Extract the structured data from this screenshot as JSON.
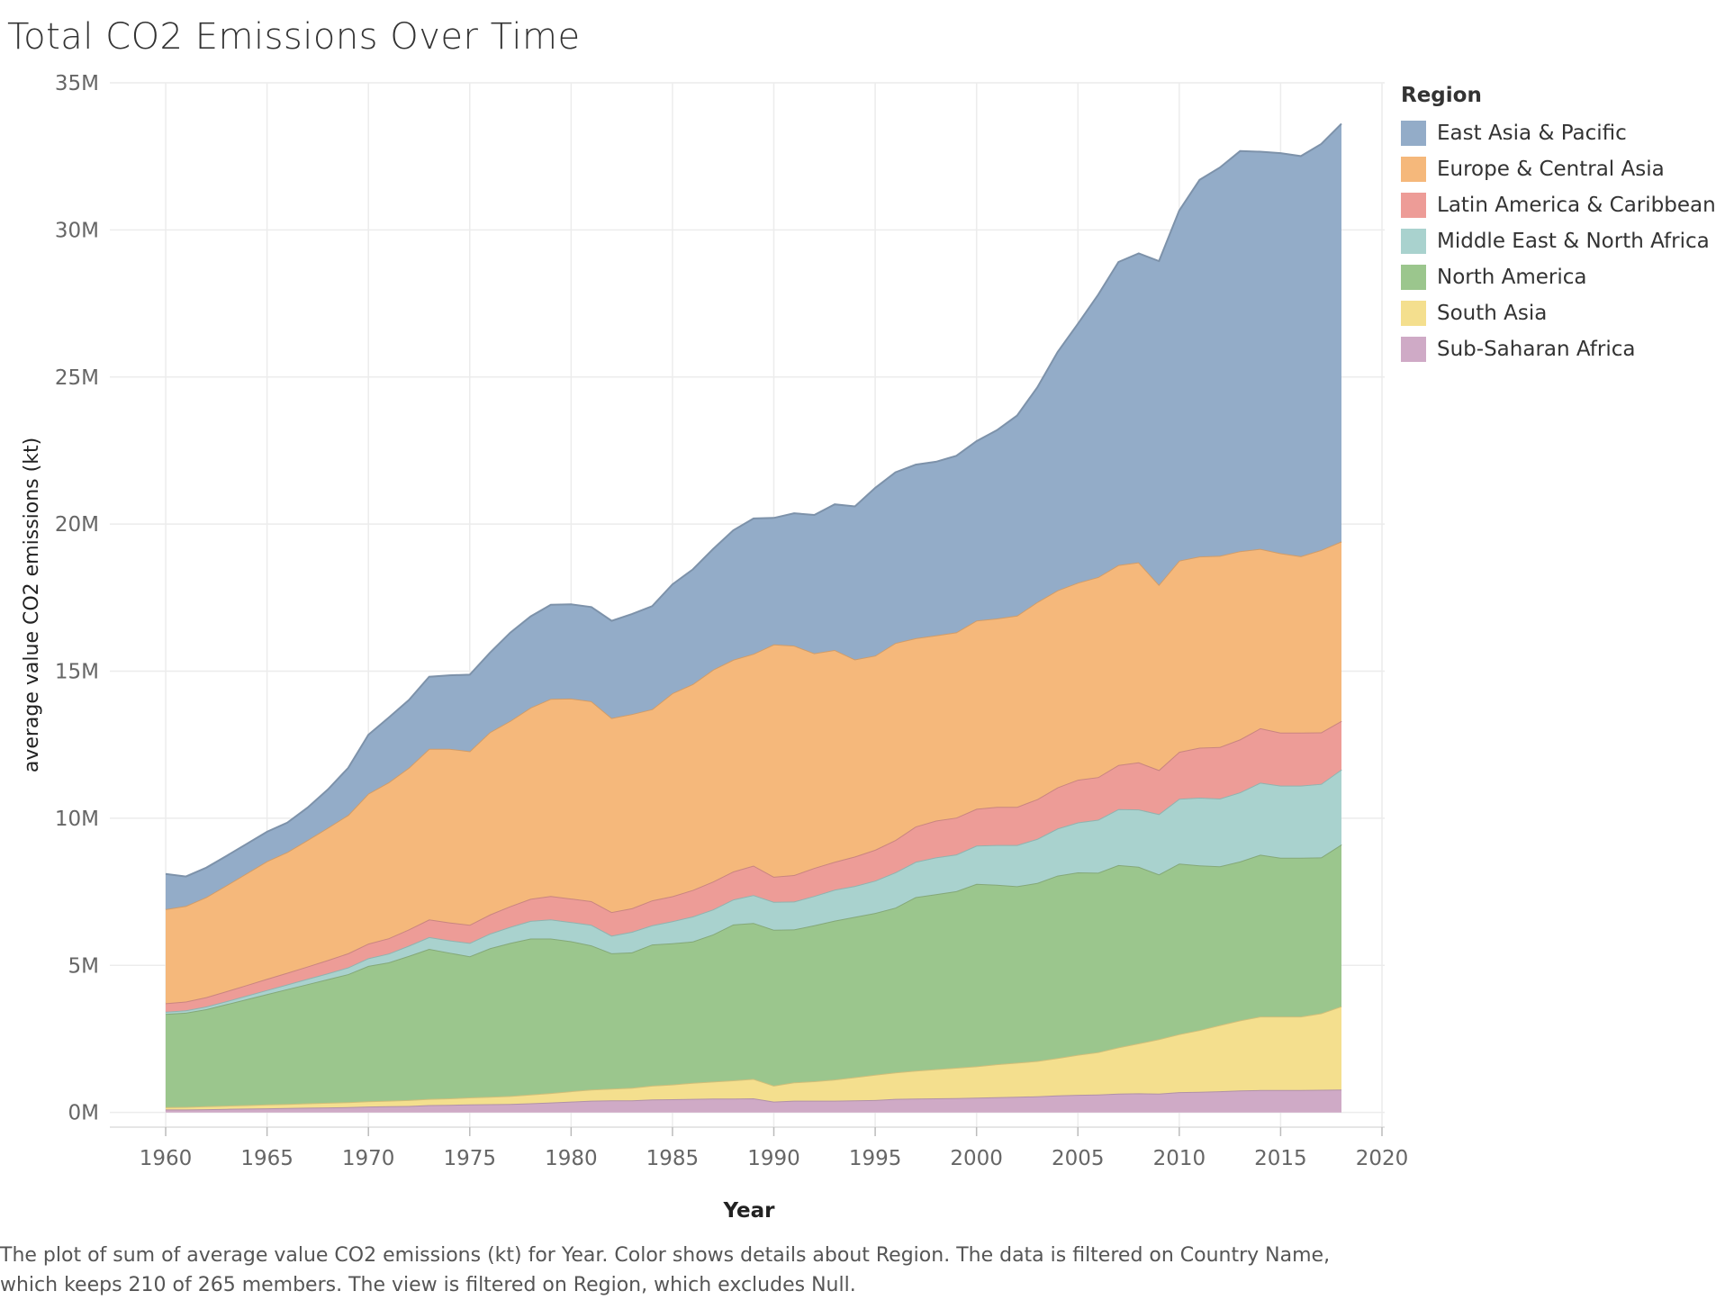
{
  "title": "Total CO2 Emissions Over Time",
  "caption": {
    "line1": "The plot of sum of average value CO2 emissions (kt) for Year.  Color shows details about Region. The data is filtered on Country Name,",
    "line2": "which keeps 210 of 265 members. The view is filtered on Region, which excludes Null."
  },
  "legend": {
    "title": "Region",
    "items": [
      {
        "label": "East Asia & Pacific",
        "color": "#93acc8"
      },
      {
        "label": "Europe & Central Asia",
        "color": "#f5b87b"
      },
      {
        "label": "Latin America & Caribbean",
        "color": "#ed9c97"
      },
      {
        "label": "Middle East & North Africa",
        "color": "#a9d2ce"
      },
      {
        "label": "North America",
        "color": "#9bc68d"
      },
      {
        "label": "South Asia",
        "color": "#f4df8e"
      },
      {
        "label": "Sub-Saharan Africa",
        "color": "#cfaac6"
      }
    ]
  },
  "chart_data": {
    "type": "area",
    "stacked": true,
    "xlabel": "Year",
    "ylabel": "average value CO2 emissions (kt)",
    "xlim": [
      1958,
      2020
    ],
    "ylim": [
      -500000,
      35000000
    ],
    "xticks": [
      1960,
      1965,
      1970,
      1975,
      1980,
      1985,
      1990,
      1995,
      2000,
      2005,
      2010,
      2015,
      2020
    ],
    "yticks": [
      0,
      5000000,
      10000000,
      15000000,
      20000000,
      25000000,
      30000000,
      35000000
    ],
    "ytick_labels": [
      "0M",
      "5M",
      "10M",
      "15M",
      "20M",
      "25M",
      "30M",
      "35M"
    ],
    "grid": true,
    "legend_position": "right",
    "x": [
      1960,
      1961,
      1962,
      1963,
      1964,
      1965,
      1966,
      1967,
      1968,
      1969,
      1970,
      1971,
      1972,
      1973,
      1974,
      1975,
      1976,
      1977,
      1978,
      1979,
      1980,
      1981,
      1982,
      1983,
      1984,
      1985,
      1986,
      1987,
      1988,
      1989,
      1990,
      1991,
      1992,
      1993,
      1994,
      1995,
      1996,
      1997,
      1998,
      1999,
      2000,
      2001,
      2002,
      2003,
      2004,
      2005,
      2006,
      2007,
      2008,
      2009,
      2010,
      2011,
      2012,
      2013,
      2014,
      2015,
      2016,
      2017,
      2018
    ],
    "series": [
      {
        "name": "Sub-Saharan Africa",
        "color": "#cfaac6",
        "values": [
          100000,
          100000,
          110000,
          120000,
          130000,
          140000,
          150000,
          160000,
          170000,
          180000,
          200000,
          210000,
          220000,
          250000,
          260000,
          270000,
          280000,
          290000,
          310000,
          340000,
          370000,
          400000,
          410000,
          410000,
          440000,
          450000,
          460000,
          470000,
          470000,
          480000,
          370000,
          400000,
          400000,
          400000,
          410000,
          420000,
          460000,
          470000,
          480000,
          490000,
          500000,
          520000,
          530000,
          550000,
          580000,
          600000,
          610000,
          640000,
          650000,
          640000,
          690000,
          700000,
          720000,
          750000,
          760000,
          760000,
          760000,
          770000,
          780000
        ]
      },
      {
        "name": "South Asia",
        "color": "#f4df8e",
        "values": [
          80000,
          90000,
          100000,
          110000,
          120000,
          130000,
          140000,
          150000,
          160000,
          170000,
          180000,
          190000,
          200000,
          210000,
          220000,
          240000,
          250000,
          270000,
          300000,
          320000,
          350000,
          380000,
          400000,
          430000,
          470000,
          500000,
          550000,
          580000,
          620000,
          660000,
          540000,
          620000,
          660000,
          720000,
          790000,
          860000,
          900000,
          950000,
          990000,
          1030000,
          1070000,
          1120000,
          1160000,
          1200000,
          1270000,
          1360000,
          1440000,
          1570000,
          1700000,
          1850000,
          1970000,
          2100000,
          2250000,
          2380000,
          2500000,
          2500000,
          2500000,
          2600000,
          2830000
        ]
      },
      {
        "name": "North America",
        "color": "#9bc68d",
        "values": [
          3170000,
          3200000,
          3300000,
          3450000,
          3600000,
          3750000,
          3900000,
          4050000,
          4200000,
          4350000,
          4600000,
          4700000,
          4900000,
          5100000,
          4950000,
          4800000,
          5050000,
          5200000,
          5300000,
          5250000,
          5100000,
          4900000,
          4600000,
          4600000,
          4800000,
          4800000,
          4800000,
          5000000,
          5300000,
          5300000,
          5300000,
          5200000,
          5300000,
          5400000,
          5450000,
          5500000,
          5600000,
          5900000,
          5950000,
          6000000,
          6200000,
          6100000,
          6000000,
          6050000,
          6200000,
          6200000,
          6100000,
          6200000,
          6000000,
          5600000,
          5800000,
          5600000,
          5400000,
          5400000,
          5500000,
          5400000,
          5400000,
          5300000,
          5500000
        ]
      },
      {
        "name": "Middle East & North Africa",
        "color": "#a9d2ce",
        "values": [
          70000,
          80000,
          90000,
          100000,
          120000,
          140000,
          160000,
          180000,
          200000,
          230000,
          260000,
          300000,
          350000,
          400000,
          420000,
          450000,
          500000,
          550000,
          600000,
          650000,
          650000,
          700000,
          600000,
          700000,
          650000,
          750000,
          850000,
          850000,
          850000,
          950000,
          950000,
          950000,
          1000000,
          1050000,
          1050000,
          1100000,
          1200000,
          1200000,
          1250000,
          1250000,
          1300000,
          1350000,
          1400000,
          1500000,
          1600000,
          1700000,
          1800000,
          1900000,
          1950000,
          2050000,
          2200000,
          2300000,
          2300000,
          2350000,
          2450000,
          2450000,
          2450000,
          2500000,
          2550000
        ]
      },
      {
        "name": "Latin America & Caribbean",
        "color": "#ed9c97",
        "values": [
          290000,
          300000,
          320000,
          340000,
          360000,
          380000,
          400000,
          420000,
          450000,
          480000,
          500000,
          520000,
          550000,
          600000,
          610000,
          620000,
          650000,
          700000,
          750000,
          800000,
          800000,
          800000,
          800000,
          800000,
          850000,
          850000,
          900000,
          950000,
          950000,
          1000000,
          850000,
          900000,
          950000,
          950000,
          1000000,
          1050000,
          1100000,
          1200000,
          1250000,
          1250000,
          1250000,
          1300000,
          1300000,
          1350000,
          1400000,
          1450000,
          1450000,
          1500000,
          1600000,
          1500000,
          1600000,
          1700000,
          1750000,
          1800000,
          1850000,
          1800000,
          1800000,
          1750000,
          1650000
        ]
      },
      {
        "name": "Europe & Central Asia",
        "color": "#f5b87b",
        "values": [
          3200000,
          3250000,
          3400000,
          3600000,
          3800000,
          4000000,
          4100000,
          4300000,
          4500000,
          4700000,
          5100000,
          5300000,
          5500000,
          5800000,
          5900000,
          5900000,
          6200000,
          6300000,
          6500000,
          6700000,
          6800000,
          6800000,
          6600000,
          6600000,
          6500000,
          6900000,
          7000000,
          7200000,
          7200000,
          7200000,
          7900000,
          7800000,
          7300000,
          7200000,
          6700000,
          6600000,
          6700000,
          6400000,
          6300000,
          6300000,
          6400000,
          6400000,
          6500000,
          6700000,
          6700000,
          6700000,
          6800000,
          6800000,
          6800000,
          6300000,
          6500000,
          6500000,
          6500000,
          6400000,
          6100000,
          6100000,
          6000000,
          6200000,
          6100000
        ]
      },
      {
        "name": "East Asia & Pacific",
        "color": "#93acc8",
        "values": [
          1200000,
          1000000,
          1000000,
          1000000,
          1000000,
          1000000,
          1000000,
          1100000,
          1300000,
          1600000,
          2000000,
          2200000,
          2300000,
          2450000,
          2500000,
          2600000,
          2700000,
          3000000,
          3100000,
          3200000,
          3200000,
          3200000,
          3300000,
          3400000,
          3500000,
          3700000,
          3900000,
          4100000,
          4400000,
          4600000,
          4300000,
          4500000,
          4700000,
          4950000,
          5200000,
          5700000,
          5800000,
          5900000,
          5900000,
          6000000,
          6100000,
          6400000,
          6800000,
          7300000,
          8100000,
          8800000,
          9600000,
          10300000,
          10500000,
          11000000,
          11900000,
          12800000,
          13200000,
          13600000,
          13500000,
          13600000,
          13600000,
          13800000,
          14200000
        ]
      }
    ]
  }
}
